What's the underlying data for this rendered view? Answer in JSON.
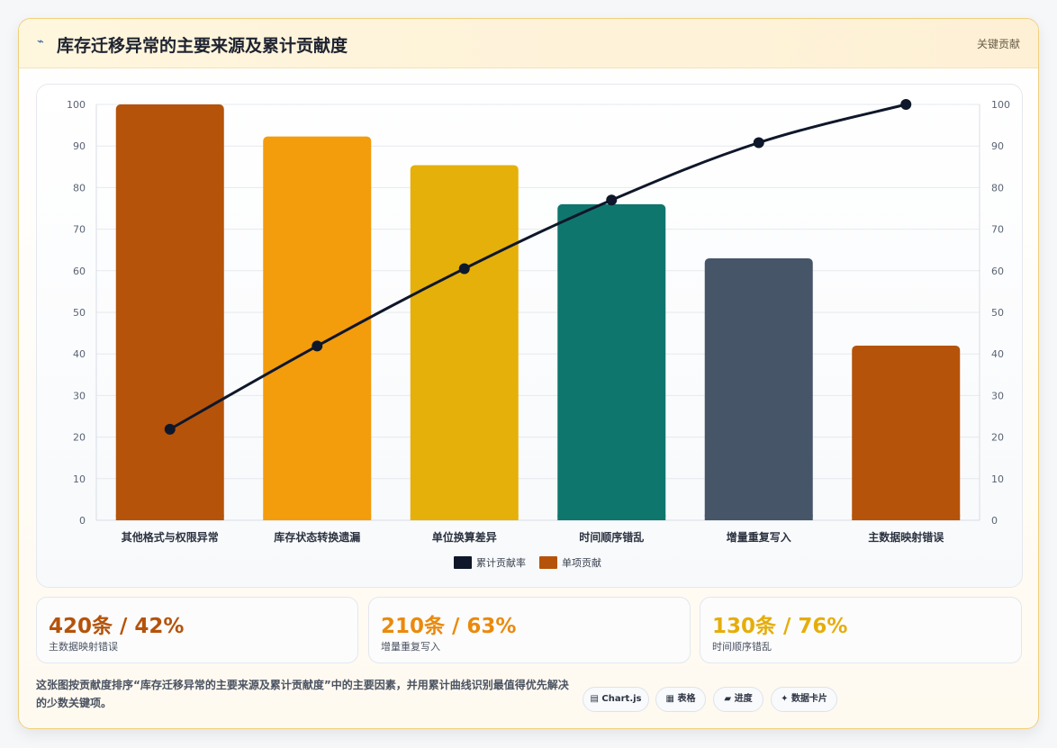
{
  "header": {
    "icon": "chart-icon",
    "icon_glyph": "⌁",
    "title": "库存迁移异常的主要来源及累计贡献度",
    "tag": "关键贡献"
  },
  "chart_data": {
    "type": "bar",
    "categories": [
      "其他格式与权限异常",
      "库存状态转换遗漏",
      "单位换算差异",
      "时间顺序错乱",
      "增量重复写入",
      "主数据映射错误"
    ],
    "series": [
      {
        "name": "单项贡献",
        "type": "bar",
        "values": [
          100,
          92.3,
          85.4,
          76,
          63,
          42
        ],
        "colors": [
          "#b5530a",
          "#f39c0c",
          "#e6b00a",
          "#0f766e",
          "#475569",
          "#b5530a"
        ]
      },
      {
        "name": "累计贡献率",
        "type": "line",
        "values": [
          21.9,
          41.9,
          60.5,
          77,
          90.8,
          100
        ],
        "color": "#0f172a"
      }
    ],
    "ylim": [
      0,
      100
    ],
    "y_ticks": [
      0,
      10,
      20,
      30,
      40,
      50,
      60,
      70,
      80,
      90,
      100
    ],
    "y2_ticks": [
      0,
      10,
      20,
      30,
      40,
      50,
      60,
      70,
      80,
      90,
      100
    ],
    "xlabel": "",
    "ylabel": "",
    "grid": true,
    "legend": {
      "placement": "bottom",
      "entries": [
        "累计贡献率",
        "单项贡献"
      ]
    }
  },
  "stats": [
    {
      "value": "420条 / 42%",
      "label": "主数据映射错误",
      "color": "#b5530a"
    },
    {
      "value": "210条 / 63%",
      "label": "增量重复写入",
      "color": "#ea8a0c"
    },
    {
      "value": "130条 / 76%",
      "label": "时间顺序错乱",
      "color": "#e6ad0a"
    }
  ],
  "footnote": "这张图按贡献度排序“库存迁移异常的主要来源及累计贡献度”中的主要因素，并用累计曲线识别最值得优先解决的少数关键项。",
  "chips": [
    {
      "icon": "chart-icon",
      "glyph": "▤",
      "label": "Chart.js"
    },
    {
      "icon": "table-icon",
      "glyph": "▦",
      "label": "表格"
    },
    {
      "icon": "progress-icon",
      "glyph": "▰",
      "label": "进度"
    },
    {
      "icon": "sparkle-icon",
      "glyph": "✦",
      "label": "数据卡片"
    }
  ]
}
